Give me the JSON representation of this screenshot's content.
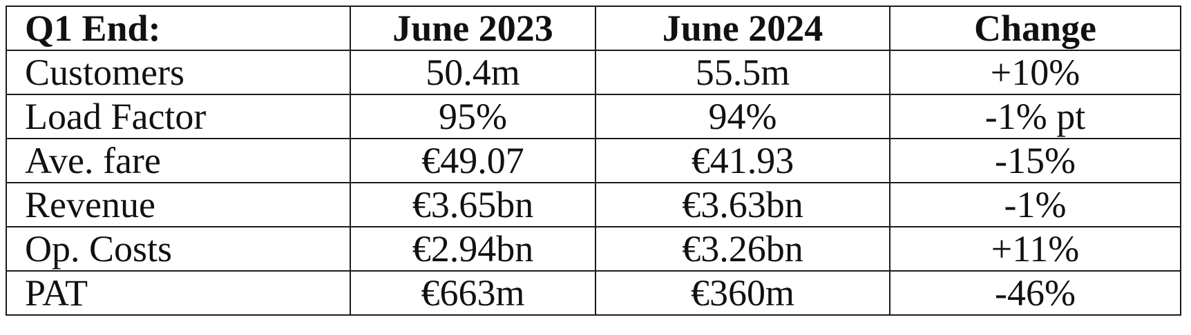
{
  "table": {
    "headers": [
      "Q1 End:",
      "June 2023",
      "June 2024",
      "Change"
    ],
    "rows": [
      [
        "Customers",
        "50.4m",
        "55.5m",
        "+10%"
      ],
      [
        "Load Factor",
        "95%",
        "94%",
        "-1% pt"
      ],
      [
        "Ave. fare",
        "€49.07",
        "€41.93",
        "-15%"
      ],
      [
        "Revenue",
        "€3.65bn",
        "€3.63bn",
        "-1%"
      ],
      [
        "Op. Costs",
        "€2.94bn",
        "€3.26bn",
        "+11%"
      ],
      [
        "PAT",
        "€663m",
        "€360m",
        "-46%"
      ]
    ]
  }
}
